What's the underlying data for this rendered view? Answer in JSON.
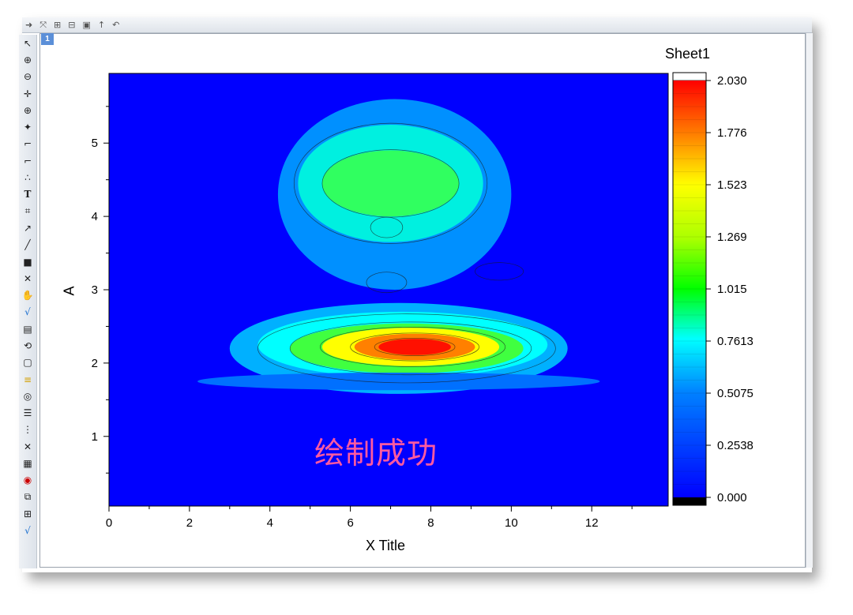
{
  "window": {
    "page_tab": "1"
  },
  "toolbar_top": {
    "icons": [
      "arrow-right-icon",
      "scale-icon",
      "add-layer-icon",
      "add-layer-2-icon",
      "graph-icon",
      "pin-icon",
      "undo-icon"
    ]
  },
  "toolbar_left": {
    "icons": [
      "pointer-icon",
      "zoom-in-icon",
      "zoom-out-icon",
      "crosshair-icon",
      "data-reader-icon",
      "screen-reader-icon",
      "region-select-icon",
      "data-select-icon",
      "scatter-icon",
      "text-tool-icon",
      "annotate-icon",
      "arrow-tool-icon",
      "line-tool-icon",
      "rectangle-tool-icon",
      "mask-icon",
      "hand-icon",
      "formula-icon",
      "graph-edit-icon",
      "rotate-icon",
      "box-3d-icon",
      "color-palette-icon",
      "circle-icon",
      "list-icon",
      "layer-arrange-icon",
      "cross-icon",
      "table-icon",
      "graph-target-icon",
      "merge-icon",
      "grid-icon",
      "sqrt-icon"
    ]
  },
  "annotation_text": "绘制成功",
  "chart_data": {
    "type": "heatmap",
    "title": "",
    "xlabel": "X Title",
    "ylabel": "A",
    "xlim": [
      0,
      13.9
    ],
    "ylim": [
      0.05,
      5.95
    ],
    "x_ticks": [
      "0",
      "2",
      "4",
      "6",
      "8",
      "10",
      "12"
    ],
    "y_ticks": [
      "1",
      "2",
      "3",
      "4",
      "5"
    ],
    "colorbar": {
      "title": "Sheet1",
      "range": [
        0,
        2.03
      ],
      "tick_labels": [
        "2.030",
        "1.776",
        "1.523",
        "1.269",
        "1.015",
        "0.7613",
        "0.5075",
        "0.2538",
        "0.000"
      ]
    },
    "peaks": [
      {
        "x": 7.6,
        "y": 2.22,
        "value": 2.0
      },
      {
        "x": 6.8,
        "y": 4.45,
        "value": 0.95
      },
      {
        "x": 8.2,
        "y": 4.5,
        "value": 0.9
      },
      {
        "x": 6.9,
        "y": 3.85,
        "value": 0.4
      },
      {
        "x": 6.9,
        "y": 3.1,
        "value": 0.45
      }
    ],
    "grid": false,
    "colors": {
      "low": "#0000ff",
      "mid": "#00ff00",
      "high": "#ff0000"
    }
  }
}
